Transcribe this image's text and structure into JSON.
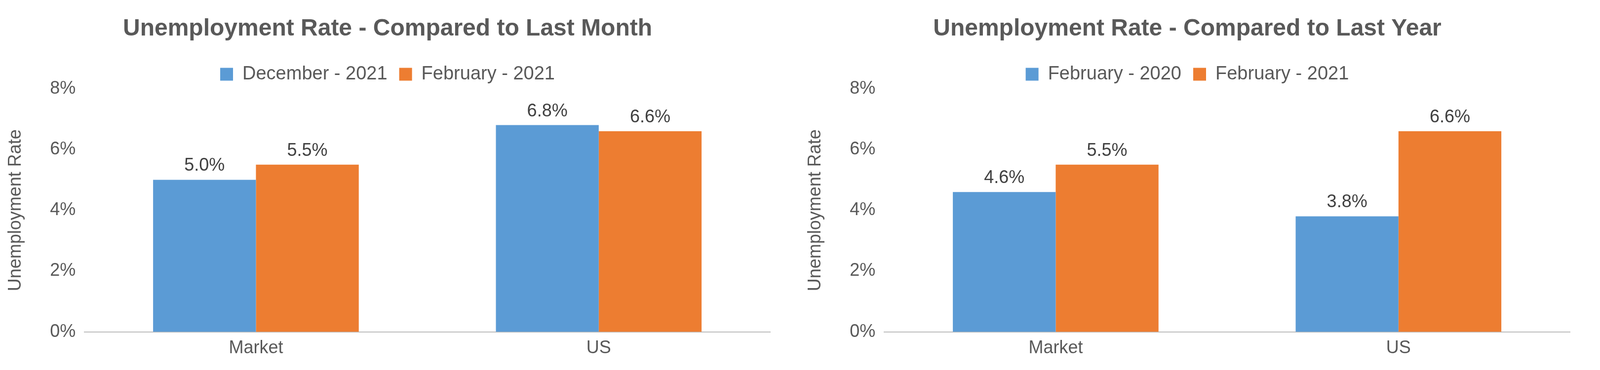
{
  "chart_data": [
    {
      "type": "bar",
      "title": "Unemployment Rate - Compared to Last Month",
      "y_label": "Unemployment Rate",
      "categories": [
        "Market",
        "US"
      ],
      "series": [
        {
          "name": "December - 2021",
          "color": "#5b9bd5",
          "values": [
            5.0,
            6.8
          ],
          "value_labels": [
            "5.0%",
            "6.8%"
          ]
        },
        {
          "name": "February - 2021",
          "color": "#ed7d31",
          "values": [
            5.5,
            6.6
          ],
          "value_labels": [
            "5.5%",
            "6.6%"
          ]
        }
      ],
      "ylim": [
        0,
        8
      ],
      "yticks": [
        {
          "value": 0,
          "label": "0%"
        },
        {
          "value": 2,
          "label": "2%"
        },
        {
          "value": 4,
          "label": "4%"
        },
        {
          "value": 6,
          "label": "6%"
        },
        {
          "value": 8,
          "label": "8%"
        }
      ],
      "grid": false,
      "legend": "top",
      "data_labels": true
    },
    {
      "type": "bar",
      "title": "Unemployment Rate - Compared to Last Year",
      "y_label": "Unemployment Rate",
      "categories": [
        "Market",
        "US"
      ],
      "series": [
        {
          "name": "February - 2020",
          "color": "#5b9bd5",
          "values": [
            4.6,
            3.8
          ],
          "value_labels": [
            "4.6%",
            "3.8%"
          ]
        },
        {
          "name": "February - 2021",
          "color": "#ed7d31",
          "values": [
            5.5,
            6.6
          ],
          "value_labels": [
            "5.5%",
            "6.6%"
          ]
        }
      ],
      "ylim": [
        0,
        8
      ],
      "yticks": [
        {
          "value": 0,
          "label": "0%"
        },
        {
          "value": 2,
          "label": "2%"
        },
        {
          "value": 4,
          "label": "4%"
        },
        {
          "value": 6,
          "label": "6%"
        },
        {
          "value": 8,
          "label": "8%"
        }
      ],
      "grid": false,
      "legend": "top",
      "data_labels": true
    }
  ]
}
